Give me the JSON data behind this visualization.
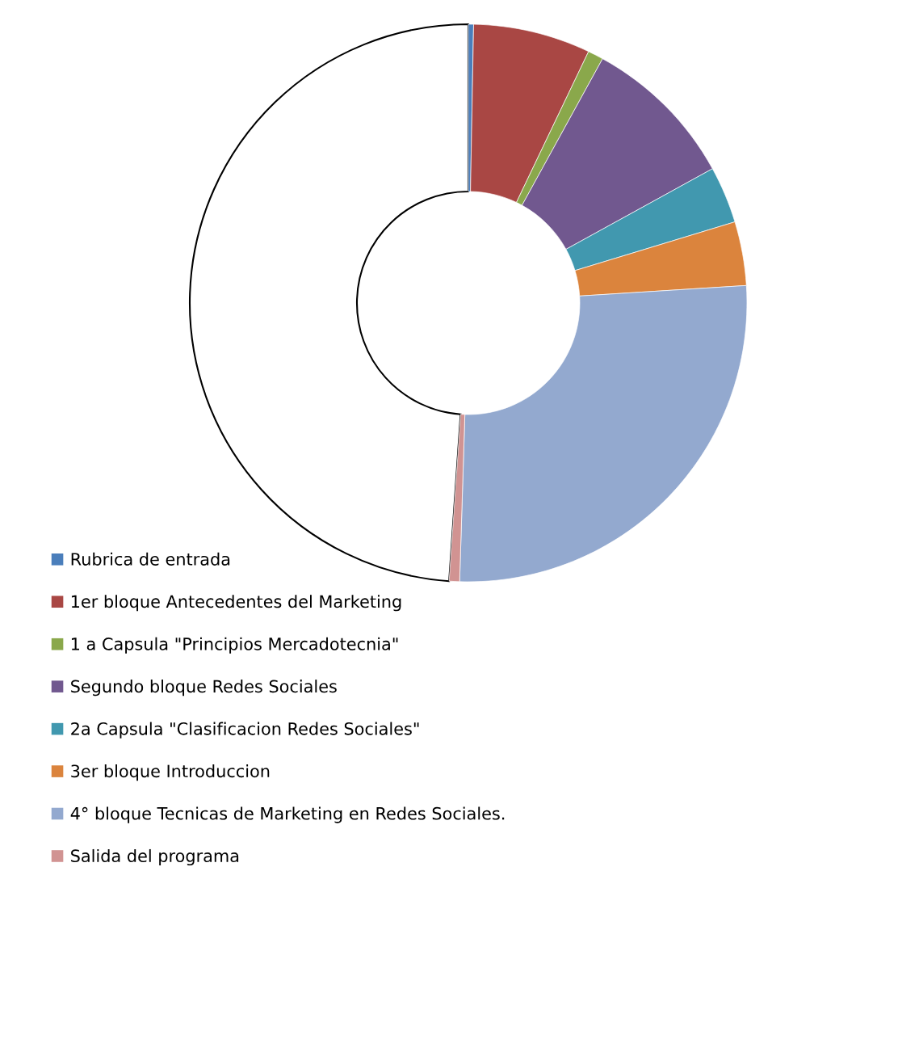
{
  "chart_data": {
    "type": "donut",
    "categories": [
      "Rubrica de entrada",
      "1er bloque Antecedentes del Marketing",
      "1 a Capsula \"Principios Mercadotecnia\"",
      "Segundo bloque Redes Sociales",
      "2a Capsula \"Clasificacion Redes Sociales\"",
      "3er bloque Introduccion",
      "4° bloque Tecnicas de Marketing en Redes Sociales.",
      "Salida del programa",
      null
    ],
    "values": [
      0.3,
      6.8,
      0.9,
      9.0,
      3.3,
      3.7,
      26.5,
      0.6,
      48.9
    ],
    "colors": [
      "#4a7ebb",
      "#a94744",
      "#8aa84b",
      "#71588f",
      "#4198af",
      "#db843d",
      "#93a9cf",
      "#d19392",
      "#ffffff"
    ],
    "legend": "bottom left"
  }
}
